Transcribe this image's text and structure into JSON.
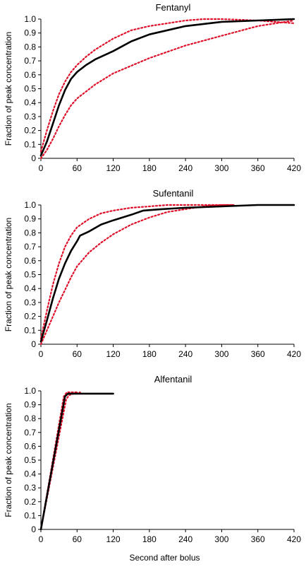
{
  "figure": {
    "xlabel": "Second after bolus"
  },
  "style": {
    "mean_color": "#000000",
    "bound_color": "#e0102a"
  },
  "chart_data": [
    {
      "type": "line",
      "title": "Fentanyl",
      "ylabel": "Fraction of peak concentration",
      "xlabel": "",
      "xlim": [
        0,
        420
      ],
      "ylim": [
        0,
        1.0
      ],
      "xticks": [
        "0",
        "60",
        "120",
        "180",
        "240",
        "300",
        "360",
        "420"
      ],
      "yticks": [
        "0",
        "0.1",
        "0.2",
        "0.3",
        "0.4",
        "0.5",
        "0.6",
        "0.7",
        "0.8",
        "0.9",
        "1.0"
      ],
      "grid": false,
      "series": [
        {
          "role": "mean",
          "x": [
            0,
            10,
            20,
            30,
            40,
            50,
            60,
            75,
            90,
            120,
            150,
            180,
            240,
            300,
            360,
            420
          ],
          "y": [
            0.02,
            0.12,
            0.25,
            0.38,
            0.49,
            0.57,
            0.62,
            0.67,
            0.71,
            0.77,
            0.84,
            0.89,
            0.95,
            0.98,
            0.99,
            1.0
          ]
        },
        {
          "role": "upper",
          "x": [
            0,
            10,
            20,
            30,
            40,
            50,
            60,
            75,
            90,
            120,
            150,
            180,
            240,
            270,
            300,
            360,
            420
          ],
          "y": [
            0.05,
            0.2,
            0.34,
            0.46,
            0.55,
            0.62,
            0.67,
            0.73,
            0.78,
            0.86,
            0.92,
            0.95,
            0.99,
            1.0,
            1.0,
            0.99,
            0.97
          ]
        },
        {
          "role": "lower",
          "x": [
            0,
            10,
            20,
            30,
            40,
            50,
            60,
            90,
            120,
            180,
            240,
            300,
            360,
            420
          ],
          "y": [
            0.0,
            0.06,
            0.14,
            0.23,
            0.31,
            0.38,
            0.43,
            0.53,
            0.61,
            0.72,
            0.81,
            0.88,
            0.95,
            0.99
          ]
        }
      ]
    },
    {
      "type": "line",
      "title": "Sufentanil",
      "ylabel": "Fraction of peak concentration",
      "xlabel": "",
      "xlim": [
        0,
        420
      ],
      "ylim": [
        0,
        1.0
      ],
      "xticks": [
        "0",
        "60",
        "120",
        "180",
        "240",
        "300",
        "360",
        "420"
      ],
      "yticks": [
        "0",
        "0.1",
        "0.2",
        "0.3",
        "0.4",
        "0.5",
        "0.6",
        "0.7",
        "0.8",
        "0.9",
        "1.0"
      ],
      "grid": false,
      "series": [
        {
          "role": "mean",
          "x": [
            0,
            10,
            20,
            30,
            40,
            50,
            60,
            65,
            80,
            100,
            120,
            150,
            170,
            200,
            240,
            300,
            360,
            420
          ],
          "y": [
            0.02,
            0.17,
            0.33,
            0.47,
            0.58,
            0.67,
            0.74,
            0.78,
            0.81,
            0.86,
            0.89,
            0.93,
            0.96,
            0.97,
            0.98,
            0.99,
            1.0,
            1.0
          ]
        },
        {
          "role": "upper",
          "x": [
            0,
            10,
            20,
            30,
            40,
            50,
            60,
            80,
            100,
            120,
            150,
            180,
            210,
            240,
            270,
            320
          ],
          "y": [
            0.04,
            0.24,
            0.43,
            0.58,
            0.7,
            0.78,
            0.84,
            0.9,
            0.94,
            0.96,
            0.98,
            0.99,
            1.0,
            1.0,
            1.0,
            1.0
          ]
        },
        {
          "role": "lower",
          "x": [
            0,
            10,
            20,
            30,
            40,
            50,
            60,
            80,
            100,
            120,
            150,
            180,
            210,
            240,
            270,
            300,
            320
          ],
          "y": [
            0.0,
            0.1,
            0.2,
            0.3,
            0.39,
            0.48,
            0.56,
            0.66,
            0.73,
            0.79,
            0.86,
            0.91,
            0.95,
            0.97,
            0.99,
            1.0,
            1.0
          ]
        }
      ]
    },
    {
      "type": "line",
      "title": "Alfentanil",
      "ylabel": "Fraction of peak concentration",
      "xlabel": "Second after bolus",
      "xlim": [
        0,
        420
      ],
      "ylim": [
        0,
        1.0
      ],
      "xticks": [
        "0",
        "60",
        "120",
        "180",
        "240",
        "300",
        "360",
        "420"
      ],
      "yticks": [
        "0",
        "0.1",
        "0.2",
        "0.3",
        "0.4",
        "0.5",
        "0.6",
        "0.7",
        "0.8",
        "0.9",
        "1.0"
      ],
      "grid": false,
      "series": [
        {
          "role": "mean",
          "x": [
            0,
            40,
            45,
            120
          ],
          "y": [
            0.0,
            0.96,
            0.98,
            0.98
          ]
        },
        {
          "role": "upper",
          "x": [
            0,
            38,
            43,
            50,
            60
          ],
          "y": [
            0.0,
            0.96,
            0.99,
            0.99,
            0.99
          ]
        },
        {
          "role": "lower",
          "x": [
            0,
            42,
            47,
            55,
            65
          ],
          "y": [
            0.0,
            0.94,
            0.97,
            0.98,
            0.99
          ]
        }
      ]
    }
  ]
}
